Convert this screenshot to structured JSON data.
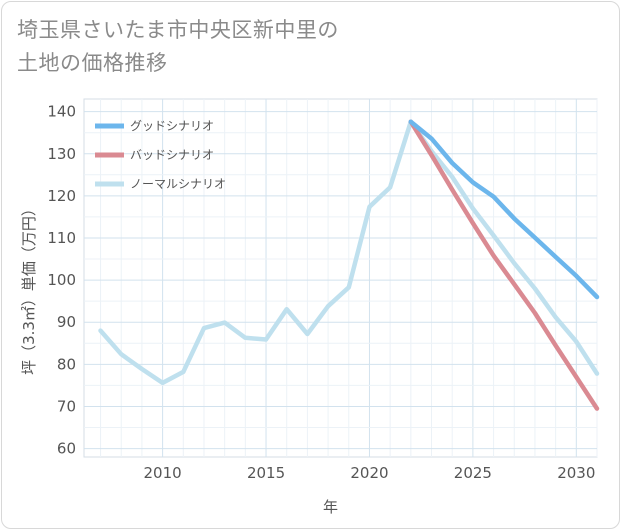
{
  "title_lines": [
    "埼玉県さいたま市中央区新中里の",
    "土地の価格推移"
  ],
  "chart_data": {
    "type": "line",
    "xlabel": "年",
    "ylabel": "坪（3.3㎡）単価（万円）",
    "xlim": [
      2006.2,
      2031
    ],
    "ylim": [
      58,
      143
    ],
    "xticks": [
      2010,
      2015,
      2020,
      2025,
      2030
    ],
    "yticks": [
      60,
      70,
      80,
      90,
      100,
      110,
      120,
      130,
      140
    ],
    "grid": true,
    "legend_position": "top-left",
    "series": [
      {
        "name": "グッドシナリオ",
        "color": "#6cb6ec",
        "x": [
          2022,
          2023,
          2024,
          2025,
          2026,
          2027,
          2028,
          2029,
          2030,
          2031
        ],
        "y": [
          137.6,
          133.6,
          127.8,
          123.2,
          119.8,
          114.6,
          110.1,
          105.5,
          101.0,
          96.0
        ]
      },
      {
        "name": "バッドシナリオ",
        "color": "#da8a92",
        "x": [
          2022,
          2023,
          2024,
          2025,
          2026,
          2027,
          2028,
          2029,
          2030,
          2031
        ],
        "y": [
          137.6,
          129.7,
          121.5,
          113.5,
          105.8,
          99.0,
          92.2,
          84.5,
          77.0,
          69.5
        ]
      },
      {
        "name": "ノーマルシナリオ",
        "color": "#bfe0ee",
        "x": [
          2007,
          2008,
          2009,
          2010,
          2011,
          2012,
          2013,
          2014,
          2015,
          2016,
          2017,
          2018,
          2019,
          2020,
          2021,
          2022,
          2023,
          2024,
          2025,
          2026,
          2027,
          2028,
          2029,
          2030,
          2031
        ],
        "y": [
          88.0,
          82.4,
          78.9,
          75.6,
          78.2,
          88.6,
          89.9,
          86.3,
          85.9,
          93.1,
          87.2,
          93.8,
          98.3,
          117.4,
          122.0,
          137.6,
          130.6,
          124.5,
          117.0,
          110.6,
          104.0,
          98.0,
          91.2,
          85.4,
          77.8
        ]
      }
    ]
  }
}
